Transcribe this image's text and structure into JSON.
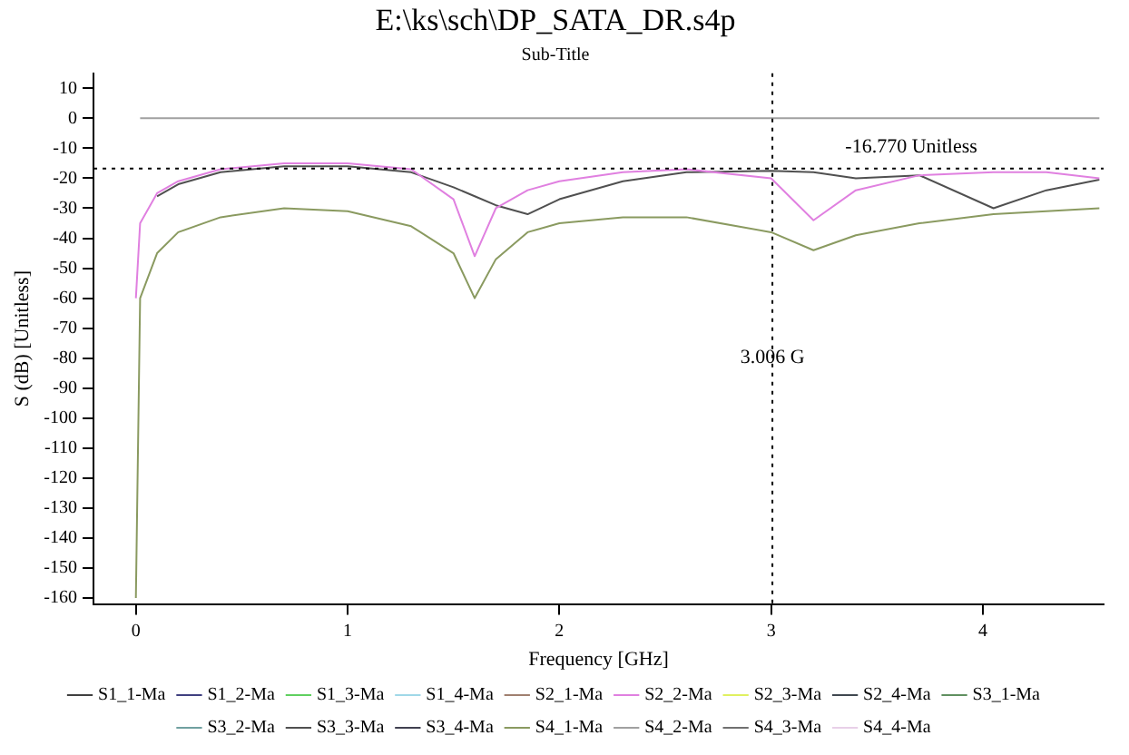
{
  "chart_data": {
    "type": "line",
    "title": "E:\\ks\\sch\\DP_SATA_DR.s4p",
    "subtitle": "Sub-Title",
    "xlabel": "Frequency [GHz]",
    "ylabel": "S (dB) [Unitless]",
    "x": [
      0,
      0.02,
      0.1,
      0.2,
      0.4,
      0.7,
      1.0,
      1.3,
      1.5,
      1.6,
      1.7,
      1.85,
      2.0,
      2.3,
      2.6,
      3.0,
      3.2,
      3.4,
      3.7,
      4.05,
      4.3,
      4.55
    ],
    "series": [
      {
        "name": "S1_1-Ma",
        "color": "#404040",
        "values": [
          null,
          null,
          null,
          null,
          null,
          null,
          null,
          null,
          null,
          null,
          null,
          null,
          null,
          null,
          null,
          null,
          null,
          null,
          null,
          null,
          null,
          null
        ]
      },
      {
        "name": "S1_2-Ma",
        "color": "#404080",
        "values": [
          null,
          null,
          null,
          null,
          null,
          null,
          null,
          null,
          null,
          null,
          null,
          null,
          null,
          null,
          null,
          null,
          null,
          null,
          null,
          null,
          null,
          null
        ]
      },
      {
        "name": "S1_3-Ma",
        "color": "#60d060",
        "values": [
          null,
          null,
          null,
          null,
          null,
          null,
          null,
          null,
          null,
          null,
          null,
          null,
          null,
          null,
          null,
          null,
          null,
          null,
          null,
          null,
          null,
          null
        ]
      },
      {
        "name": "S1_4-Ma",
        "color": "#a0d8e8",
        "values": [
          null,
          null,
          null,
          null,
          null,
          null,
          null,
          null,
          null,
          null,
          null,
          null,
          null,
          null,
          null,
          null,
          null,
          null,
          null,
          null,
          null,
          null
        ]
      },
      {
        "name": "S2_1-Ma",
        "color": "#a08070",
        "values": [
          null,
          null,
          null,
          null,
          null,
          null,
          null,
          null,
          null,
          null,
          null,
          null,
          null,
          null,
          null,
          null,
          null,
          null,
          null,
          null,
          null,
          null
        ]
      },
      {
        "name": "S2_2-Ma",
        "color": "#e080e0",
        "values": [
          -60,
          -35,
          -25,
          -21,
          -17,
          -15,
          -15,
          -17,
          -27,
          -46,
          -30,
          -24,
          -21,
          -18,
          -17,
          -20,
          -34,
          -24,
          -19,
          -18,
          -18,
          -20
        ]
      },
      {
        "name": "S2_3-Ma",
        "color": "#e0f060",
        "values": [
          null,
          null,
          null,
          null,
          null,
          null,
          null,
          null,
          null,
          null,
          null,
          null,
          null,
          null,
          null,
          null,
          null,
          null,
          null,
          null,
          null,
          null
        ]
      },
      {
        "name": "S2_4-Ma",
        "color": "#404850",
        "values": [
          null,
          null,
          null,
          null,
          null,
          null,
          null,
          null,
          null,
          null,
          null,
          null,
          null,
          null,
          null,
          null,
          null,
          null,
          null,
          null,
          null,
          null
        ]
      },
      {
        "name": "S3_1-Ma",
        "color": "#609060",
        "values": [
          null,
          null,
          null,
          null,
          null,
          null,
          null,
          null,
          null,
          null,
          null,
          null,
          null,
          null,
          null,
          null,
          null,
          null,
          null,
          null,
          null,
          null
        ]
      },
      {
        "name": "S3_2-Ma",
        "color": "#70a0a0",
        "values": [
          null,
          null,
          null,
          null,
          null,
          null,
          null,
          null,
          null,
          null,
          null,
          null,
          null,
          null,
          null,
          null,
          null,
          null,
          null,
          null,
          null,
          null
        ]
      },
      {
        "name": "S3_3-Ma",
        "color": "#505050",
        "values": [
          null,
          null,
          -26,
          -22,
          -18,
          -16,
          -16,
          -18,
          -23,
          -26,
          -29,
          -32,
          -27,
          -21,
          -18,
          -17.5,
          -18,
          -20,
          -19,
          -30,
          -24,
          -20.5
        ]
      },
      {
        "name": "S3_4-Ma",
        "color": "#404050",
        "values": [
          null,
          null,
          null,
          null,
          null,
          null,
          null,
          null,
          null,
          null,
          null,
          null,
          null,
          null,
          null,
          null,
          null,
          null,
          null,
          null,
          null,
          null
        ]
      },
      {
        "name": "S4_1-Ma",
        "color": "#8a9a60",
        "values": [
          -160,
          -60,
          -45,
          -38,
          -33,
          -30,
          -31,
          -36,
          -45,
          -60,
          -47,
          -38,
          -35,
          -33,
          -33,
          -38,
          -44,
          -39,
          -35,
          -32,
          -31,
          -30
        ]
      },
      {
        "name": "S4_2-Ma",
        "color": "#a0a0a0",
        "values": [
          null,
          0,
          0,
          0,
          0,
          0,
          0,
          0,
          0,
          0,
          0,
          0,
          0,
          0,
          0,
          0,
          0,
          0,
          0,
          0,
          0,
          0
        ]
      },
      {
        "name": "S4_3-Ma",
        "color": "#707070",
        "values": [
          null,
          null,
          null,
          null,
          null,
          null,
          null,
          null,
          null,
          null,
          null,
          null,
          null,
          null,
          null,
          null,
          null,
          null,
          null,
          null,
          null,
          null
        ]
      },
      {
        "name": "S4_4-Ma",
        "color": "#e8d0e8",
        "values": [
          null,
          null,
          null,
          null,
          null,
          null,
          null,
          null,
          null,
          null,
          null,
          null,
          null,
          null,
          null,
          null,
          null,
          null,
          null,
          null,
          null,
          null
        ]
      }
    ],
    "xlim": [
      -0.2,
      4.57
    ],
    "ylim": [
      -162,
      15
    ],
    "xticks": [
      0,
      1,
      2,
      3,
      4
    ],
    "yticks": [
      -160,
      -150,
      -140,
      -130,
      -120,
      -110,
      -100,
      -90,
      -80,
      -70,
      -60,
      -50,
      -40,
      -30,
      -20,
      -10,
      0,
      10
    ],
    "ref_lines": [
      {
        "axis": "y",
        "value": -16.77,
        "label": "-16.770 Unitless",
        "line_style": "dotted"
      },
      {
        "axis": "x",
        "value": 3.006,
        "label": "3.006 G",
        "line_style": "dotted"
      }
    ],
    "grid": false,
    "legend": "bottom",
    "marker": "none",
    "line_style": "solid"
  }
}
